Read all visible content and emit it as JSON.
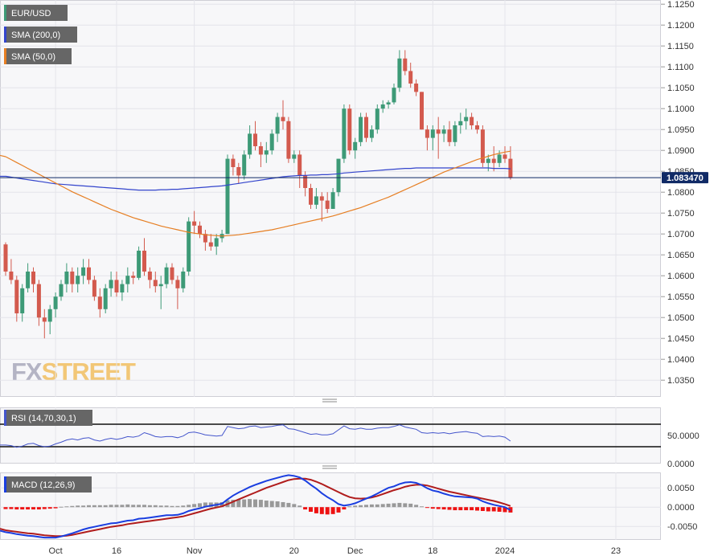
{
  "chart_data": {
    "type": "candlestick",
    "symbol": "EUR/USD",
    "legend": [
      {
        "label": "EUR/USD",
        "color": "#3d9a77"
      },
      {
        "label": "SMA (200,0)",
        "color": "#3344cc"
      },
      {
        "label": "SMA (50,0)",
        "color": "#e67e22"
      }
    ],
    "last_price_label": "1.083470",
    "last_price": 1.08347,
    "price_axis": {
      "ylim": [
        1.031,
        1.126
      ],
      "ticks": [
        "1.1250",
        "1.1200",
        "1.1150",
        "1.1100",
        "1.1050",
        "1.1000",
        "1.0950",
        "1.0900",
        "1.0850",
        "1.0800",
        "1.0750",
        "1.0700",
        "1.0650",
        "1.0600",
        "1.0550",
        "1.0500",
        "1.0450",
        "1.0400",
        "1.0350"
      ]
    },
    "x_axis_labels": [
      {
        "label": "Oct",
        "index": 9
      },
      {
        "label": "16",
        "index": 20
      },
      {
        "label": "Nov",
        "index": 34
      },
      {
        "label": "20",
        "index": 52
      },
      {
        "label": "Dec",
        "index": 63
      },
      {
        "label": "18",
        "index": 77
      },
      {
        "label": "2024",
        "index": 90
      },
      {
        "label": "23",
        "index": 110
      }
    ],
    "candles_ohlc": [
      [
        1.0675,
        1.068,
        1.06,
        1.061
      ],
      [
        1.061,
        1.064,
        1.058,
        1.059
      ],
      [
        1.059,
        1.06,
        1.049,
        1.051
      ],
      [
        1.051,
        1.058,
        1.049,
        1.057
      ],
      [
        1.057,
        1.063,
        1.056,
        1.061
      ],
      [
        1.061,
        1.062,
        1.056,
        1.058
      ],
      [
        1.058,
        1.059,
        1.048,
        1.05
      ],
      [
        1.05,
        1.052,
        1.045,
        1.049
      ],
      [
        1.049,
        1.053,
        1.046,
        1.052
      ],
      [
        1.052,
        1.056,
        1.05,
        1.055
      ],
      [
        1.055,
        1.059,
        1.054,
        1.058
      ],
      [
        1.058,
        1.063,
        1.056,
        1.061
      ],
      [
        1.061,
        1.062,
        1.056,
        1.058
      ],
      [
        1.058,
        1.062,
        1.056,
        1.06
      ],
      [
        1.06,
        1.064,
        1.058,
        1.062
      ],
      [
        1.062,
        1.064,
        1.058,
        1.059
      ],
      [
        1.059,
        1.06,
        1.054,
        1.055
      ],
      [
        1.055,
        1.057,
        1.05,
        1.052
      ],
      [
        1.052,
        1.058,
        1.051,
        1.057
      ],
      [
        1.057,
        1.061,
        1.055,
        1.059
      ],
      [
        1.059,
        1.061,
        1.055,
        1.056
      ],
      [
        1.056,
        1.059,
        1.054,
        1.058
      ],
      [
        1.058,
        1.062,
        1.056,
        1.06
      ],
      [
        1.06,
        1.061,
        1.058,
        1.0595
      ],
      [
        1.0595,
        1.067,
        1.059,
        1.066
      ],
      [
        1.066,
        1.069,
        1.06,
        1.061
      ],
      [
        1.061,
        1.062,
        1.057,
        1.059
      ],
      [
        1.059,
        1.061,
        1.056,
        1.0575
      ],
      [
        1.0575,
        1.06,
        1.052,
        1.058
      ],
      [
        1.058,
        1.063,
        1.057,
        1.062
      ],
      [
        1.062,
        1.063,
        1.058,
        1.059
      ],
      [
        1.059,
        1.06,
        1.052,
        1.057
      ],
      [
        1.057,
        1.062,
        1.056,
        1.061
      ],
      [
        1.061,
        1.074,
        1.06,
        1.073
      ],
      [
        1.073,
        1.0755,
        1.07,
        1.072
      ],
      [
        1.072,
        1.073,
        1.069,
        1.07
      ],
      [
        1.07,
        1.071,
        1.066,
        1.068
      ],
      [
        1.068,
        1.07,
        1.066,
        1.067
      ],
      [
        1.067,
        1.07,
        1.065,
        1.069
      ],
      [
        1.069,
        1.071,
        1.068,
        1.07
      ],
      [
        1.07,
        1.089,
        1.07,
        1.088
      ],
      [
        1.088,
        1.089,
        1.084,
        1.086
      ],
      [
        1.086,
        1.087,
        1.082,
        1.084
      ],
      [
        1.084,
        1.09,
        1.083,
        1.089
      ],
      [
        1.089,
        1.096,
        1.088,
        1.094
      ],
      [
        1.094,
        1.097,
        1.09,
        1.091
      ],
      [
        1.091,
        1.092,
        1.086,
        1.089
      ],
      [
        1.089,
        1.092,
        1.087,
        1.09
      ],
      [
        1.09,
        1.095,
        1.089,
        1.094
      ],
      [
        1.094,
        1.099,
        1.092,
        1.098
      ],
      [
        1.098,
        1.102,
        1.095,
        1.097
      ],
      [
        1.097,
        1.098,
        1.087,
        1.088
      ],
      [
        1.088,
        1.09,
        1.087,
        1.089
      ],
      [
        1.089,
        1.09,
        1.081,
        1.084
      ],
      [
        1.084,
        1.085,
        1.079,
        1.081
      ],
      [
        1.081,
        1.082,
        1.076,
        1.077
      ],
      [
        1.077,
        1.081,
        1.076,
        1.079
      ],
      [
        1.079,
        1.08,
        1.073,
        1.078
      ],
      [
        1.078,
        1.08,
        1.075,
        1.076
      ],
      [
        1.076,
        1.081,
        1.076,
        1.08
      ],
      [
        1.08,
        1.088,
        1.079,
        1.088
      ],
      [
        1.088,
        1.101,
        1.087,
        1.1
      ],
      [
        1.1,
        1.101,
        1.089,
        1.09
      ],
      [
        1.09,
        1.093,
        1.088,
        1.092
      ],
      [
        1.092,
        1.099,
        1.091,
        1.098
      ],
      [
        1.098,
        1.099,
        1.092,
        1.093
      ],
      [
        1.093,
        1.096,
        1.092,
        1.095
      ],
      [
        1.095,
        1.101,
        1.094,
        1.1
      ],
      [
        1.1,
        1.102,
        1.099,
        1.101
      ],
      [
        1.101,
        1.102,
        1.1,
        1.1015
      ],
      [
        1.1015,
        1.106,
        1.101,
        1.105
      ],
      [
        1.105,
        1.114,
        1.104,
        1.112
      ],
      [
        1.112,
        1.114,
        1.108,
        1.109
      ],
      [
        1.109,
        1.111,
        1.105,
        1.106
      ],
      [
        1.106,
        1.107,
        1.103,
        1.104
      ],
      [
        1.104,
        1.104,
        1.095,
        1.095
      ],
      [
        1.095,
        1.096,
        1.09,
        1.093
      ],
      [
        1.093,
        1.096,
        1.09,
        1.095
      ],
      [
        1.095,
        1.098,
        1.088,
        1.094
      ],
      [
        1.094,
        1.096,
        1.092,
        1.095
      ],
      [
        1.095,
        1.097,
        1.091,
        1.092
      ],
      [
        1.092,
        1.097,
        1.091,
        1.096
      ],
      [
        1.096,
        1.099,
        1.094,
        1.097
      ],
      [
        1.097,
        1.1,
        1.095,
        1.098
      ],
      [
        1.098,
        1.099,
        1.095,
        1.096
      ],
      [
        1.096,
        1.097,
        1.094,
        1.095
      ],
      [
        1.095,
        1.096,
        1.086,
        1.087
      ],
      [
        1.087,
        1.089,
        1.085,
        1.088
      ],
      [
        1.088,
        1.091,
        1.085,
        1.087
      ],
      [
        1.087,
        1.09,
        1.086,
        1.089
      ],
      [
        1.089,
        1.091,
        1.087,
        1.088
      ],
      [
        1.088,
        1.091,
        1.083,
        1.0835
      ]
    ],
    "sma200": [
      1.0838,
      1.0836,
      1.0834,
      1.0832,
      1.083,
      1.0828,
      1.0826,
      1.0824,
      1.0822,
      1.082,
      1.0819,
      1.0818,
      1.0817,
      1.0816,
      1.0815,
      1.0814,
      1.0813,
      1.0812,
      1.0811,
      1.081,
      1.0809,
      1.0808,
      1.0807,
      1.0806,
      1.0805,
      1.0805,
      1.0805,
      1.0805,
      1.0806,
      1.0806,
      1.0807,
      1.0807,
      1.0808,
      1.0809,
      1.081,
      1.0811,
      1.0812,
      1.0813,
      1.0814,
      1.0815,
      1.0817,
      1.0819,
      1.0821,
      1.0823,
      1.0825,
      1.0827,
      1.0829,
      1.0831,
      1.0833,
      1.0835,
      1.0837,
      1.0838,
      1.0839,
      1.084,
      1.084,
      1.0841,
      1.0841,
      1.0842,
      1.0842,
      1.0843,
      1.0844,
      1.0846,
      1.0847,
      1.0848,
      1.0849,
      1.085,
      1.0851,
      1.0852,
      1.0853,
      1.0854,
      1.0855,
      1.0856,
      1.0857,
      1.0857,
      1.0858,
      1.0858,
      1.0858,
      1.0858,
      1.0858,
      1.0858,
      1.0858,
      1.0858,
      1.0858,
      1.0858,
      1.0858,
      1.0858,
      1.0858,
      1.0858,
      1.0857,
      1.0857,
      1.0857,
      1.0856
    ],
    "sma50": [
      1.0885,
      1.0878,
      1.0871,
      1.0864,
      1.0857,
      1.085,
      1.0843,
      1.0836,
      1.0829,
      1.0822,
      1.0815,
      1.0808,
      1.0801,
      1.0795,
      1.0789,
      1.0783,
      1.0777,
      1.0771,
      1.0765,
      1.0759,
      1.0754,
      1.0749,
      1.0744,
      1.0739,
      1.0735,
      1.0731,
      1.0727,
      1.0723,
      1.0719,
      1.0716,
      1.0713,
      1.071,
      1.0707,
      1.0704,
      1.0702,
      1.07,
      1.0698,
      1.0697,
      1.0696,
      1.0695,
      1.0696,
      1.0697,
      1.0698,
      1.07,
      1.0702,
      1.0704,
      1.0706,
      1.0708,
      1.071,
      1.0713,
      1.0716,
      1.0719,
      1.0722,
      1.0725,
      1.0728,
      1.0731,
      1.0734,
      1.0737,
      1.074,
      1.0743,
      1.0747,
      1.0751,
      1.0755,
      1.0759,
      1.0763,
      1.0768,
      1.0773,
      1.0778,
      1.0783,
      1.0788,
      1.0794,
      1.08,
      1.0806,
      1.0812,
      1.0818,
      1.0824,
      1.083,
      1.0836,
      1.0842,
      1.0848,
      1.0853,
      1.0858,
      1.0863,
      1.0868,
      1.0873,
      1.0878,
      1.0882,
      1.0886,
      1.089,
      1.0893,
      1.0896,
      1.0898
    ],
    "rsi": {
      "label": "RSI (14,70,30,1)",
      "ticks": [
        "50.0000",
        "0.0000"
      ],
      "ylim": [
        0,
        100
      ],
      "levels": [
        70,
        30
      ],
      "values": [
        33,
        32,
        29,
        31,
        35,
        36,
        32,
        30,
        31,
        35,
        38,
        42,
        44,
        42,
        45,
        46,
        42,
        40,
        43,
        45,
        43,
        45,
        48,
        47,
        49,
        55,
        52,
        48,
        47,
        48,
        48,
        46,
        49,
        55,
        56,
        54,
        51,
        50,
        49,
        50,
        66,
        64,
        62,
        63,
        66,
        67,
        64,
        65,
        66,
        68,
        69,
        62,
        61,
        58,
        55,
        52,
        53,
        51,
        51,
        53,
        60,
        67,
        62,
        61,
        63,
        61,
        61,
        63,
        64,
        64,
        66,
        69,
        65,
        63,
        61,
        55,
        54,
        55,
        54,
        55,
        53,
        55,
        56,
        57,
        55,
        54,
        48,
        49,
        48,
        49,
        47,
        40
      ]
    },
    "macd": {
      "label": "MACD (12,26,9)",
      "ticks": [
        "0.0050",
        "0.0000",
        "-0.0050"
      ],
      "ylim": [
        -0.0085,
        0.009
      ],
      "histogram": [
        -0.0005,
        -0.0005,
        -0.0006,
        -0.0006,
        -0.0006,
        -0.0006,
        -0.0006,
        -0.0005,
        -0.0004,
        -0.0003,
        0.0001,
        0.0002,
        0.0003,
        0.0004,
        0.0004,
        0.0005,
        0.0005,
        0.0005,
        0.0005,
        0.0006,
        0.0006,
        0.0006,
        0.0007,
        0.0006,
        0.0006,
        0.0006,
        0.0005,
        0.0005,
        0.0004,
        0.0004,
        0.0003,
        0.0003,
        0.0004,
        0.0006,
        0.0008,
        0.001,
        0.0012,
        0.0012,
        0.0012,
        0.0013,
        0.0018,
        0.0019,
        0.002,
        0.002,
        0.0021,
        0.002,
        0.0019,
        0.0017,
        0.0016,
        0.0015,
        0.0013,
        0.0011,
        0.0008,
        0.0004,
        -0.0006,
        -0.0012,
        -0.0016,
        -0.0018,
        -0.0019,
        -0.0018,
        -0.0014,
        -0.0006,
        0.0002,
        0.0004,
        0.0005,
        0.0006,
        0.0007,
        0.0007,
        0.0008,
        0.0009,
        0.001,
        0.0011,
        0.001,
        0.0009,
        0.0006,
        0.0002,
        -0.0002,
        -0.0004,
        -0.0005,
        -0.0006,
        -0.0007,
        -0.0008,
        -0.0008,
        -0.0008,
        -0.0008,
        -0.0009,
        -0.001,
        -0.0011,
        -0.0011,
        -0.0012,
        -0.0013,
        -0.0014
      ],
      "macd_line": [
        -0.0065,
        -0.0067,
        -0.007,
        -0.0072,
        -0.0074,
        -0.0075,
        -0.0077,
        -0.0079,
        -0.0079,
        -0.0079,
        -0.0076,
        -0.0072,
        -0.0068,
        -0.0063,
        -0.0058,
        -0.0054,
        -0.0051,
        -0.0048,
        -0.0045,
        -0.0042,
        -0.0041,
        -0.0038,
        -0.0035,
        -0.0034,
        -0.003,
        -0.0029,
        -0.0027,
        -0.0025,
        -0.0023,
        -0.0021,
        -0.0021,
        -0.002,
        -0.0016,
        -0.001,
        -0.0006,
        -0.0003,
        0.0001,
        0.0004,
        0.0006,
        0.0009,
        0.002,
        0.003,
        0.0038,
        0.0045,
        0.0052,
        0.0058,
        0.0063,
        0.0068,
        0.0072,
        0.0076,
        0.008,
        0.0083,
        0.0081,
        0.0077,
        0.0069,
        0.0058,
        0.0048,
        0.0036,
        0.0026,
        0.0018,
        0.0008,
        0.0004,
        0.0006,
        0.001,
        0.0016,
        0.0022,
        0.0028,
        0.0035,
        0.0043,
        0.005,
        0.0054,
        0.006,
        0.0064,
        0.0065,
        0.0063,
        0.0057,
        0.0049,
        0.0043,
        0.004,
        0.0035,
        0.0031,
        0.0028,
        0.0027,
        0.0026,
        0.0025,
        0.0022,
        0.0015,
        0.001,
        0.0006,
        0.0003,
        0.0,
        -0.0008
      ],
      "signal_line": [
        -0.006,
        -0.0062,
        -0.0064,
        -0.0066,
        -0.0068,
        -0.0069,
        -0.0071,
        -0.0073,
        -0.0074,
        -0.0075,
        -0.0075,
        -0.0074,
        -0.0072,
        -0.0069,
        -0.0066,
        -0.0063,
        -0.006,
        -0.0057,
        -0.0054,
        -0.0051,
        -0.0049,
        -0.0047,
        -0.0044,
        -0.0042,
        -0.004,
        -0.0038,
        -0.0036,
        -0.0034,
        -0.0032,
        -0.003,
        -0.0028,
        -0.0026,
        -0.0024,
        -0.002,
        -0.0016,
        -0.0012,
        -0.0008,
        -0.0004,
        -0.0001,
        0.0002,
        0.0008,
        0.0014,
        0.002,
        0.0026,
        0.0032,
        0.0038,
        0.0044,
        0.005,
        0.0055,
        0.006,
        0.0065,
        0.007,
        0.0073,
        0.0074,
        0.0074,
        0.0071,
        0.0066,
        0.006,
        0.0053,
        0.0046,
        0.0039,
        0.0032,
        0.0026,
        0.0023,
        0.0022,
        0.0023,
        0.0025,
        0.0029,
        0.0034,
        0.0039,
        0.0044,
        0.0048,
        0.0053,
        0.0056,
        0.0058,
        0.0058,
        0.0056,
        0.0052,
        0.0048,
        0.0044,
        0.004,
        0.0037,
        0.0034,
        0.0031,
        0.0028,
        0.0025,
        0.0022,
        0.0019,
        0.0016,
        0.0012,
        0.0008,
        0.0003
      ]
    },
    "watermark": {
      "prefix": "FX",
      "suffix": "STREET"
    },
    "colors": {
      "up": "#3d9a77",
      "down": "#d35a4e",
      "sma200": "#3344cc",
      "sma50": "#e67e22",
      "rsi_line": "#4455cc",
      "macd_line": "#1a3ee0",
      "signal_line": "#b01c1c",
      "hist_pos": "#999999",
      "hist_neg": "#ee1111",
      "price_label_bg": "#102a66",
      "legend_bg": "#666666"
    }
  }
}
